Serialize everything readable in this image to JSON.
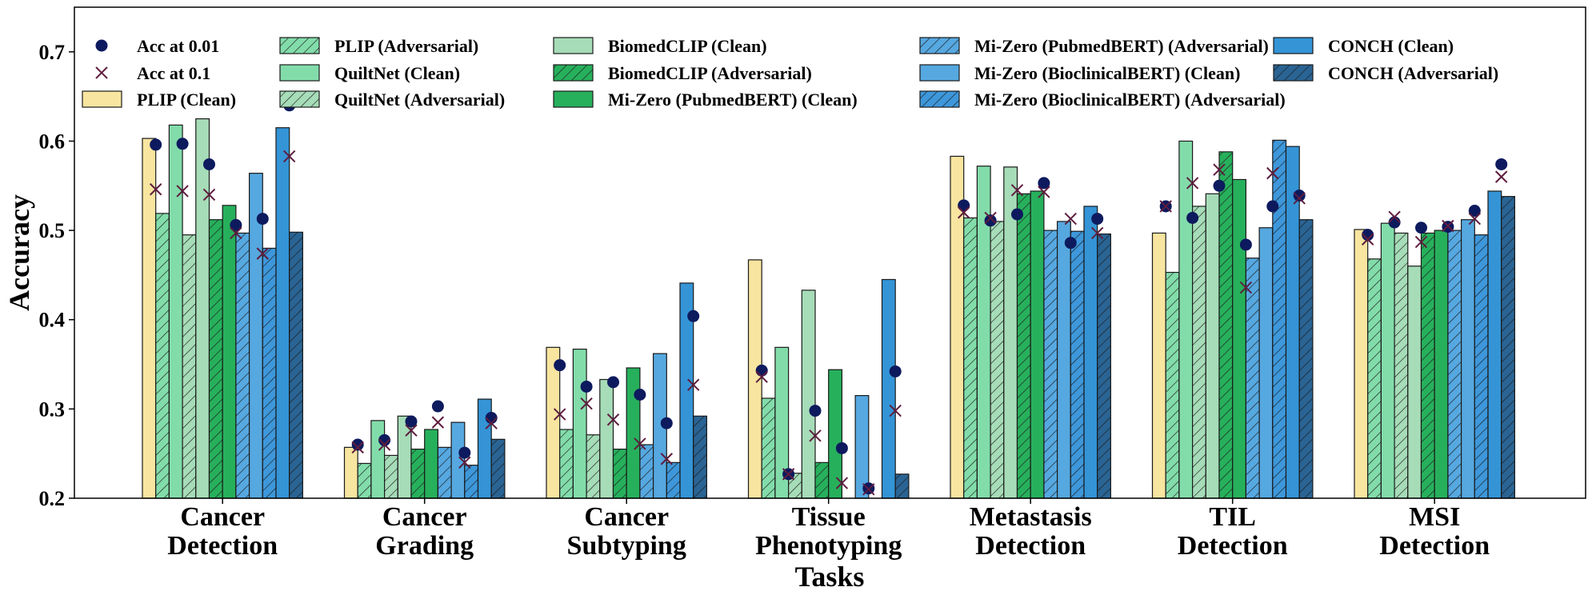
{
  "chart_data": {
    "type": "bar",
    "title": "",
    "xlabel": "Tasks",
    "ylabel": "Accuracy",
    "ylim": [
      0.2,
      0.75
    ],
    "yticks": [
      "0.2",
      "0.3",
      "0.4",
      "0.5",
      "0.6",
      "0.7"
    ],
    "grid": false,
    "legend_position": "top",
    "categories": [
      [
        "Cancer",
        "Detection"
      ],
      [
        "Cancer",
        "Grading"
      ],
      [
        "Cancer",
        "Subtyping"
      ],
      [
        "Tissue",
        "Phenotyping"
      ],
      [
        "Metastasis",
        "Detection"
      ],
      [
        "TIL",
        "Detection"
      ],
      [
        "MSI",
        "Detection"
      ]
    ],
    "series": [
      {
        "name": "PLIP (Clean)",
        "color": "#f8e5a0",
        "hatch": false,
        "values": [
          0.603,
          0.257,
          0.369,
          0.467,
          0.583,
          0.497,
          0.501
        ]
      },
      {
        "name": "PLIP (Adversarial)",
        "color": "#82dcaa",
        "hatch": true,
        "values": [
          0.519,
          0.239,
          0.277,
          0.312,
          0.514,
          0.453,
          0.468
        ]
      },
      {
        "name": "QuiltNet (Clean)",
        "color": "#82dcaa",
        "hatch": false,
        "values": [
          0.618,
          0.287,
          0.367,
          0.369,
          0.572,
          0.6,
          0.508
        ]
      },
      {
        "name": "QuiltNet (Adversarial)",
        "color": "#a6dcb8",
        "hatch": true,
        "values": [
          0.495,
          0.248,
          0.271,
          0.228,
          0.51,
          0.527,
          0.497
        ]
      },
      {
        "name": "BiomedCLIP (Clean)",
        "color": "#a6dcb8",
        "hatch": false,
        "values": [
          0.625,
          0.292,
          0.333,
          0.433,
          0.571,
          0.541,
          0.46
        ]
      },
      {
        "name": "BiomedCLIP (Adversarial)",
        "color": "#27b05c",
        "hatch": true,
        "values": [
          0.512,
          0.255,
          0.255,
          0.24,
          0.541,
          0.588,
          0.497
        ]
      },
      {
        "name": "Mi-Zero (PubmedBERT) (Clean)",
        "color": "#27b05c",
        "hatch": false,
        "values": [
          0.528,
          0.277,
          0.346,
          0.344,
          0.544,
          0.557,
          0.5
        ]
      },
      {
        "name": "Mi-Zero (PubmedBERT) (Adversarial)",
        "color": "#56a8e0",
        "hatch": true,
        "values": [
          0.497,
          0.257,
          0.26,
          0.2,
          0.5,
          0.469,
          0.5
        ]
      },
      {
        "name": "Mi-Zero (BioclinicalBERT) (Clean)",
        "color": "#56a8e0",
        "hatch": false,
        "values": [
          0.564,
          0.285,
          0.362,
          0.315,
          0.51,
          0.503,
          0.512
        ]
      },
      {
        "name": "Mi-Zero (BioclinicalBERT) (Adversarial)",
        "color": "#3d97da",
        "hatch": true,
        "values": [
          0.48,
          0.237,
          0.24,
          0.2,
          0.499,
          0.601,
          0.495
        ]
      },
      {
        "name": "CONCH (Clean)",
        "color": "#3494d6",
        "hatch": false,
        "values": [
          0.615,
          0.311,
          0.441,
          0.445,
          0.527,
          0.594,
          0.544
        ]
      },
      {
        "name": "CONCH (Adversarial)",
        "color": "#2a6494",
        "hatch": true,
        "values": [
          0.498,
          0.266,
          0.292,
          0.227,
          0.496,
          0.512,
          0.538
        ]
      }
    ],
    "markers": [
      {
        "name": "Acc at 0.01",
        "shape": "circle",
        "color": "#0d1a5e",
        "values": [
          [
            0.596,
            0.597,
            0.574,
            0.506,
            0.513,
            0.64
          ],
          [
            0.26,
            0.265,
            0.286,
            0.303,
            0.251,
            0.29
          ],
          [
            0.349,
            0.325,
            0.33,
            0.316,
            0.284,
            0.404
          ],
          [
            0.343,
            0.227,
            0.298,
            0.256,
            0.211,
            0.342
          ],
          [
            0.528,
            0.511,
            0.518,
            0.553,
            0.486,
            0.513
          ],
          [
            0.527,
            0.514,
            0.55,
            0.484,
            0.527,
            0.539
          ],
          [
            0.495,
            0.509,
            0.503,
            0.504,
            0.522,
            0.574
          ]
        ]
      },
      {
        "name": "Acc at 0.1",
        "shape": "x",
        "color": "#5e1d3e",
        "values": [
          [
            0.546,
            0.544,
            0.54,
            0.497,
            0.474,
            0.583
          ],
          [
            0.257,
            0.26,
            0.276,
            0.285,
            0.24,
            0.284
          ],
          [
            0.294,
            0.306,
            0.288,
            0.261,
            0.244,
            0.327
          ],
          [
            0.336,
            0.227,
            0.27,
            0.217,
            0.21,
            0.298
          ],
          [
            0.52,
            0.514,
            0.545,
            0.543,
            0.513,
            0.497
          ],
          [
            0.527,
            0.553,
            0.568,
            0.436,
            0.564,
            0.536
          ],
          [
            0.49,
            0.515,
            0.487,
            0.505,
            0.513,
            0.56
          ]
        ]
      }
    ]
  }
}
